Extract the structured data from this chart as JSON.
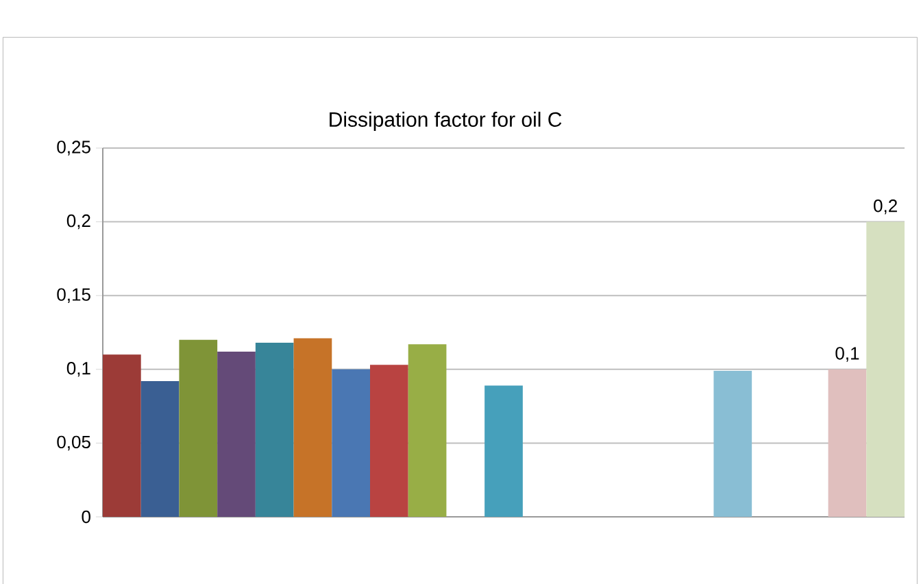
{
  "chart_data": {
    "type": "bar",
    "title": "Dissipation factor for oil C",
    "categories": [
      null,
      null,
      null,
      null,
      null,
      null,
      null,
      null,
      null,
      null,
      null,
      null,
      null,
      null,
      null,
      null,
      null,
      null,
      null,
      null,
      null
    ],
    "values": [
      0.11,
      0.092,
      0.12,
      0.112,
      0.118,
      0.121,
      0.1,
      0.103,
      0.117,
      null,
      0.089,
      null,
      null,
      null,
      null,
      null,
      0.099,
      null,
      null,
      0.1,
      0.2
    ],
    "colors": [
      "#9c3b37",
      "#3a5f93",
      "#7f9437",
      "#644a78",
      "#378599",
      "#c67328",
      "#4a77b3",
      "#b94341",
      "#98ae46",
      null,
      "#46a0bb",
      null,
      null,
      null,
      null,
      null,
      "#89bed4",
      null,
      null,
      "#e0bfbe",
      "#d6e0c0"
    ],
    "value_labels": [
      null,
      null,
      null,
      null,
      null,
      null,
      null,
      null,
      null,
      null,
      null,
      null,
      null,
      null,
      null,
      null,
      null,
      null,
      null,
      "0,1",
      "0,2"
    ],
    "ylim": [
      0,
      0.25
    ],
    "yticks": [
      0,
      {
        "value": 0.05,
        "label": "0,05"
      },
      {
        "value": 0.1,
        "label": "0,1"
      },
      {
        "value": 0.15,
        "label": "0,15"
      },
      {
        "value": 0.2,
        "label": "0,2"
      },
      {
        "value": 0.25,
        "label": "0,25"
      }
    ],
    "grid": "y"
  }
}
